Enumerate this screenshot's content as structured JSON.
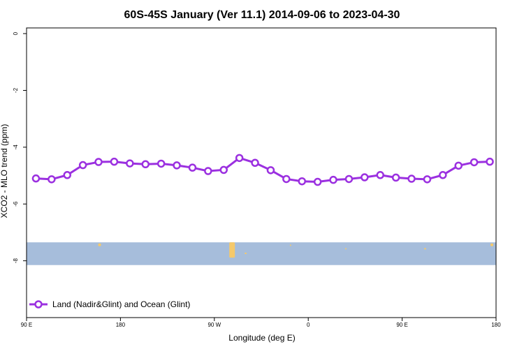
{
  "chart_data": {
    "type": "line",
    "title": "60S-45S January (Ver 11.1)   2014-09-06 to 2023-04-30",
    "xlabel": "Longitude (deg E)",
    "ylabel": "XCO2 - MLO trend (ppm)",
    "x_ticks": [
      {
        "value": 90,
        "label": "90 E"
      },
      {
        "value": 180,
        "label": "180"
      },
      {
        "value": 270,
        "label": "90 W"
      },
      {
        "value": 360,
        "label": "0"
      },
      {
        "value": 450,
        "label": "90 E"
      },
      {
        "value": 540,
        "label": "180"
      }
    ],
    "y_ticks": [
      {
        "value": 0,
        "label": "0"
      },
      {
        "value": -2,
        "label": "-2"
      },
      {
        "value": -4,
        "label": "-4"
      },
      {
        "value": -6,
        "label": "-6"
      },
      {
        "value": -8,
        "label": "-8"
      }
    ],
    "xlim": [
      90,
      540
    ],
    "ylim": [
      -10,
      0.2
    ],
    "legend_position": "bottom-left",
    "grid": false,
    "map_strip": {
      "ymin": -8.15,
      "ymax": -7.35,
      "ocean_color": "#a6bddb",
      "land_color": "#f5c96b"
    },
    "series": [
      {
        "name": "Land (Nadir&Glint) and Ocean (Glint)",
        "color": "#9b30e0",
        "x": [
          99,
          114,
          129,
          144,
          159,
          174,
          189,
          204,
          219,
          234,
          249,
          264,
          279,
          294,
          309,
          324,
          339,
          354,
          369,
          384,
          399,
          414,
          429,
          444,
          459,
          474,
          489,
          504,
          519,
          534
        ],
        "y": [
          -5.1,
          -5.13,
          -4.98,
          -4.63,
          -4.52,
          -4.51,
          -4.57,
          -4.6,
          -4.58,
          -4.64,
          -4.72,
          -4.84,
          -4.8,
          -4.38,
          -4.55,
          -4.81,
          -5.12,
          -5.2,
          -5.22,
          -5.15,
          -5.12,
          -5.06,
          -4.98,
          -5.07,
          -5.11,
          -5.13,
          -4.98,
          -4.65,
          -4.53,
          -4.51
        ]
      }
    ]
  }
}
